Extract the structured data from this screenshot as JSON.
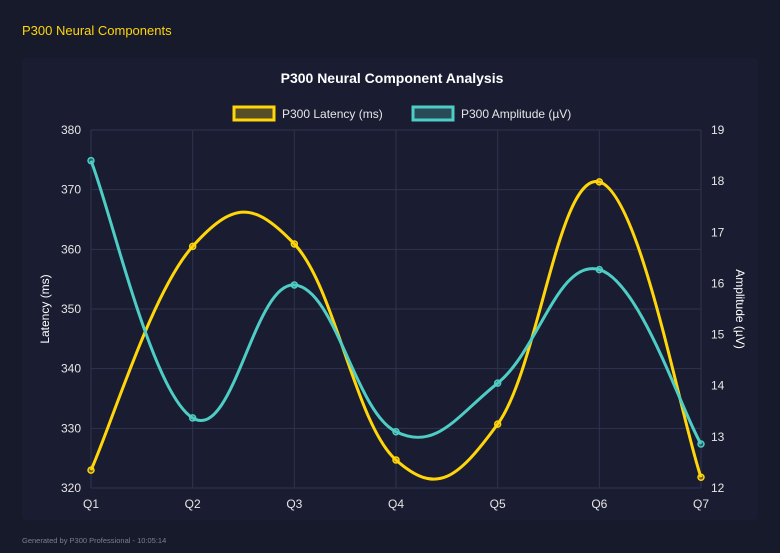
{
  "header": {
    "title": "P300 Neural Components"
  },
  "footer": {
    "text": "Generated by P300 Professional - 10:05:14"
  },
  "chart_data": {
    "type": "line",
    "title": "P300 Neural Component Analysis",
    "categories": [
      "Q1",
      "Q2",
      "Q3",
      "Q4",
      "Q5",
      "Q6",
      "Q7"
    ],
    "series": [
      {
        "name": "P300 Latency (ms)",
        "axis": "left",
        "color": "#ffd60a",
        "values": [
          323.0,
          360.5,
          360.9,
          324.7,
          330.7,
          371.3,
          321.8
        ]
      },
      {
        "name": "P300 Amplitude (µV)",
        "axis": "right",
        "color": "#4ecdc4",
        "values": [
          18.4,
          13.37,
          15.97,
          13.1,
          14.05,
          16.27,
          12.86
        ]
      }
    ],
    "ylabel": "Latency (ms)",
    "y2label": "Amplitude (µV)",
    "ylim": [
      320,
      380
    ],
    "yticks": [
      320,
      330,
      340,
      350,
      360,
      370,
      380
    ],
    "y2lim": [
      12,
      19
    ],
    "y2ticks": [
      12,
      13,
      14,
      15,
      16,
      17,
      18,
      19
    ],
    "grid": true,
    "legend": "top"
  }
}
